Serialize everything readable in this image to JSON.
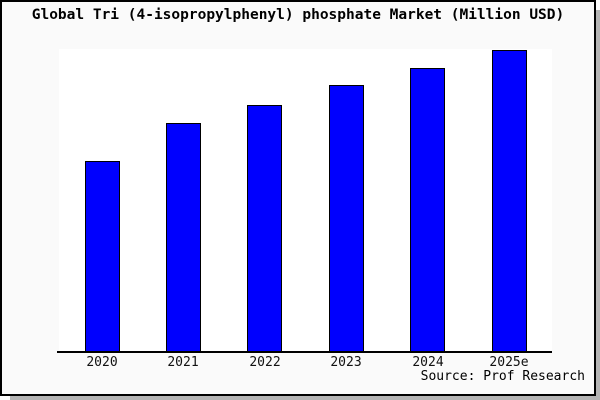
{
  "chart_data": {
    "type": "bar",
    "title": "Global Tri (4-isopropylphenyl) phosphate Market (Million USD)",
    "categories": [
      "2020",
      "2021",
      "2022",
      "2023",
      "2024",
      "2025e"
    ],
    "values": [
      63.1,
      75.7,
      81.7,
      88.3,
      93.9,
      100
    ],
    "xlabel": "",
    "ylabel": "",
    "ylim": [
      0,
      100
    ],
    "y_axis_shown": false,
    "grid": false,
    "legend": false,
    "value_note": "no y-axis ticks in image; values are relative bar heights indexed to 2025e = 100",
    "bar_color": "#0000fe",
    "bar_border_color": "#000000",
    "background_color": "#fafafa",
    "plot_background_color": "#ffffff",
    "source": "Source: Prof Research"
  }
}
